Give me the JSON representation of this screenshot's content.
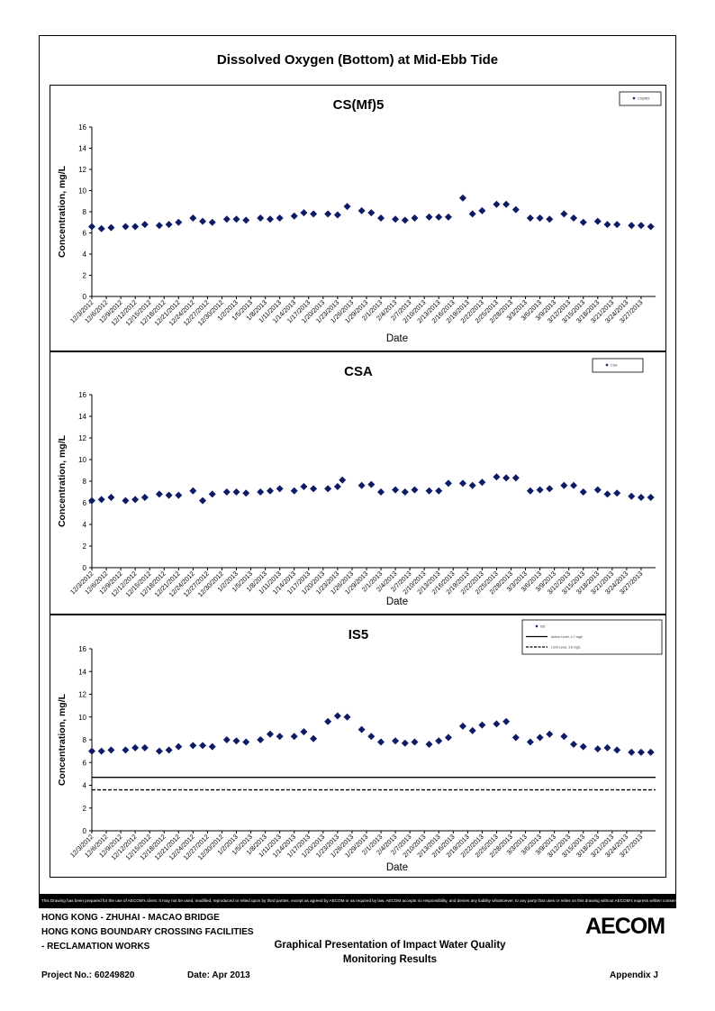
{
  "page": {
    "main_title": "Dissolved Oxygen (Bottom) at Mid-Ebb Tide",
    "disclaimer": "This Drawing has been prepared for the use of AECOM's client. It may not be used, modified, reproduced or relied upon by third parties, except as agreed by AECOM or as required by law. AECOM accepts no responsibility, and denies any liability whatsoever, to any party that uses or relies on this drawing without AECOM's express written consent.",
    "footer": {
      "line1": "HONG KONG - ZHUHAI - MACAO BRIDGE",
      "line2": "HONG KONG BOUNDARY CROSSING FACILITIES",
      "line3": "- RECLAMATION WORKS",
      "title_line1": "Graphical Presentation of Impact Water Quality",
      "title_line2": "Monitoring Results",
      "project": "Project No.: 60249820",
      "date": "Date: Apr 2013",
      "appendix": "Appendix J",
      "logo": "AECOM"
    }
  },
  "chart_data": [
    {
      "type": "scatter",
      "title": "CS(Mf)5",
      "xlabel": "Date",
      "ylabel": "Concentration, mg/L",
      "ylim": [
        0,
        16
      ],
      "yticks": [
        0,
        2,
        4,
        6,
        8,
        10,
        12,
        14,
        16
      ],
      "x_tick_labels": [
        "12/3/2012",
        "12/6/2012",
        "12/9/2012",
        "12/12/2012",
        "12/15/2012",
        "12/18/2012",
        "12/21/2012",
        "12/24/2012",
        "12/27/2012",
        "12/30/2012",
        "1/2/2013",
        "1/5/2013",
        "1/8/2013",
        "1/11/2013",
        "1/14/2013",
        "1/17/2013",
        "1/20/2013",
        "1/23/2013",
        "1/26/2013",
        "1/29/2013",
        "2/1/2013",
        "2/4/2013",
        "2/7/2013",
        "2/10/2013",
        "2/13/2013",
        "2/16/2013",
        "2/19/2013",
        "2/22/2013",
        "2/25/2013",
        "2/28/2013",
        "3/3/2013",
        "3/6/2013",
        "3/9/2013",
        "3/12/2013",
        "3/15/2013",
        "3/18/2013",
        "3/21/2013",
        "3/24/2013",
        "3/27/2013"
      ],
      "legend": [
        {
          "label": "CS(Mf)5",
          "style": "marker"
        }
      ],
      "legend_position": "top-right",
      "series": [
        {
          "name": "CS(Mf)5",
          "color": "#0d1a66",
          "points": [
            [
              "12/3/2012",
              6.6
            ],
            [
              "12/5/2012",
              6.4
            ],
            [
              "12/7/2012",
              6.5
            ],
            [
              "12/10/2012",
              6.6
            ],
            [
              "12/12/2012",
              6.6
            ],
            [
              "12/14/2012",
              6.8
            ],
            [
              "12/17/2012",
              6.7
            ],
            [
              "12/19/2012",
              6.8
            ],
            [
              "12/21/2012",
              7.0
            ],
            [
              "12/24/2012",
              7.4
            ],
            [
              "12/26/2012",
              7.1
            ],
            [
              "12/28/2012",
              7.0
            ],
            [
              "12/31/2012",
              7.3
            ],
            [
              "1/2/2013",
              7.3
            ],
            [
              "1/4/2013",
              7.2
            ],
            [
              "1/7/2013",
              7.4
            ],
            [
              "1/9/2013",
              7.3
            ],
            [
              "1/11/2013",
              7.4
            ],
            [
              "1/14/2013",
              7.6
            ],
            [
              "1/16/2013",
              7.9
            ],
            [
              "1/18/2013",
              7.8
            ],
            [
              "1/21/2013",
              7.8
            ],
            [
              "1/23/2013",
              7.7
            ],
            [
              "1/25/2013",
              8.5
            ],
            [
              "1/28/2013",
              8.1
            ],
            [
              "1/30/2013",
              7.9
            ],
            [
              "2/1/2013",
              7.4
            ],
            [
              "2/4/2013",
              7.3
            ],
            [
              "2/6/2013",
              7.2
            ],
            [
              "2/8/2013",
              7.4
            ],
            [
              "2/11/2013",
              7.5
            ],
            [
              "2/13/2013",
              7.5
            ],
            [
              "2/15/2013",
              7.5
            ],
            [
              "2/18/2013",
              9.3
            ],
            [
              "2/20/2013",
              7.8
            ],
            [
              "2/22/2013",
              8.1
            ],
            [
              "2/25/2013",
              8.7
            ],
            [
              "2/27/2013",
              8.7
            ],
            [
              "3/1/2013",
              8.2
            ],
            [
              "3/4/2013",
              7.4
            ],
            [
              "3/6/2013",
              7.4
            ],
            [
              "3/8/2013",
              7.3
            ],
            [
              "3/11/2013",
              7.8
            ],
            [
              "3/13/2013",
              7.4
            ],
            [
              "3/15/2013",
              7.0
            ],
            [
              "3/18/2013",
              7.1
            ],
            [
              "3/20/2013",
              6.8
            ],
            [
              "3/22/2013",
              6.8
            ],
            [
              "3/25/2013",
              6.7
            ],
            [
              "3/27/2013",
              6.7
            ],
            [
              "3/29/2013",
              6.6
            ]
          ]
        }
      ]
    },
    {
      "type": "scatter",
      "title": "CSA",
      "xlabel": "Date",
      "ylabel": "Concentration, mg/L",
      "ylim": [
        0,
        16
      ],
      "yticks": [
        0,
        2,
        4,
        6,
        8,
        10,
        12,
        14,
        16
      ],
      "x_tick_labels": [
        "12/3/2012",
        "12/6/2012",
        "12/9/2012",
        "12/12/2012",
        "12/15/2012",
        "12/18/2012",
        "12/21/2012",
        "12/24/2012",
        "12/27/2012",
        "12/30/2012",
        "1/2/2013",
        "1/5/2013",
        "1/8/2013",
        "1/11/2013",
        "1/14/2013",
        "1/17/2013",
        "1/20/2013",
        "1/23/2013",
        "1/26/2013",
        "1/29/2013",
        "2/1/2013",
        "2/4/2013",
        "2/7/2013",
        "2/10/2013",
        "2/13/2013",
        "2/16/2013",
        "2/19/2013",
        "2/22/2013",
        "2/25/2013",
        "2/28/2013",
        "3/3/2013",
        "3/6/2013",
        "3/9/2013",
        "3/12/2013",
        "3/15/2013",
        "3/18/2013",
        "3/21/2013",
        "3/24/2013",
        "3/27/2013"
      ],
      "legend": [
        {
          "label": "CSA",
          "style": "marker"
        }
      ],
      "legend_position": "top-right",
      "series": [
        {
          "name": "CSA",
          "color": "#0d1a66",
          "points": [
            [
              "12/3/2012",
              6.2
            ],
            [
              "12/5/2012",
              6.3
            ],
            [
              "12/7/2012",
              6.5
            ],
            [
              "12/10/2012",
              6.2
            ],
            [
              "12/12/2012",
              6.3
            ],
            [
              "12/14/2012",
              6.5
            ],
            [
              "12/17/2012",
              6.8
            ],
            [
              "12/19/2012",
              6.7
            ],
            [
              "12/21/2012",
              6.7
            ],
            [
              "12/24/2012",
              7.1
            ],
            [
              "12/26/2012",
              6.2
            ],
            [
              "12/28/2012",
              6.8
            ],
            [
              "12/31/2012",
              7.0
            ],
            [
              "1/2/2013",
              7.0
            ],
            [
              "1/4/2013",
              6.9
            ],
            [
              "1/7/2013",
              7.0
            ],
            [
              "1/9/2013",
              7.1
            ],
            [
              "1/11/2013",
              7.3
            ],
            [
              "1/14/2013",
              7.1
            ],
            [
              "1/16/2013",
              7.5
            ],
            [
              "1/18/2013",
              7.3
            ],
            [
              "1/21/2013",
              7.3
            ],
            [
              "1/23/2013",
              7.5
            ],
            [
              "1/24/2013",
              8.1
            ],
            [
              "1/28/2013",
              7.6
            ],
            [
              "1/30/2013",
              7.7
            ],
            [
              "2/1/2013",
              7.0
            ],
            [
              "2/4/2013",
              7.2
            ],
            [
              "2/6/2013",
              7.0
            ],
            [
              "2/8/2013",
              7.2
            ],
            [
              "2/11/2013",
              7.1
            ],
            [
              "2/13/2013",
              7.1
            ],
            [
              "2/15/2013",
              7.8
            ],
            [
              "2/18/2013",
              7.8
            ],
            [
              "2/20/2013",
              7.6
            ],
            [
              "2/22/2013",
              7.9
            ],
            [
              "2/25/2013",
              8.4
            ],
            [
              "2/27/2013",
              8.3
            ],
            [
              "3/1/2013",
              8.3
            ],
            [
              "3/4/2013",
              7.1
            ],
            [
              "3/6/2013",
              7.2
            ],
            [
              "3/8/2013",
              7.3
            ],
            [
              "3/11/2013",
              7.6
            ],
            [
              "3/13/2013",
              7.6
            ],
            [
              "3/15/2013",
              7.0
            ],
            [
              "3/18/2013",
              7.2
            ],
            [
              "3/20/2013",
              6.8
            ],
            [
              "3/22/2013",
              6.9
            ],
            [
              "3/25/2013",
              6.6
            ],
            [
              "3/27/2013",
              6.5
            ],
            [
              "3/29/2013",
              6.5
            ]
          ]
        }
      ]
    },
    {
      "type": "scatter",
      "title": "IS5",
      "xlabel": "Date",
      "ylabel": "Concentration, mg/L",
      "ylim": [
        0,
        16
      ],
      "yticks": [
        0,
        2,
        4,
        6,
        8,
        10,
        12,
        14,
        16
      ],
      "x_tick_labels": [
        "12/3/2012",
        "12/6/2012",
        "12/9/2012",
        "12/12/2012",
        "12/15/2012",
        "12/18/2012",
        "12/21/2012",
        "12/24/2012",
        "12/27/2012",
        "12/30/2012",
        "1/2/2013",
        "1/5/2013",
        "1/8/2013",
        "1/11/2013",
        "1/14/2013",
        "1/17/2013",
        "1/20/2013",
        "1/23/2013",
        "1/26/2013",
        "1/29/2013",
        "2/1/2013",
        "2/4/2013",
        "2/7/2013",
        "2/10/2013",
        "2/13/2013",
        "2/16/2013",
        "2/19/2013",
        "2/22/2013",
        "2/25/2013",
        "2/28/2013",
        "3/3/2013",
        "3/6/2013",
        "3/9/2013",
        "3/12/2013",
        "3/15/2013",
        "3/18/2013",
        "3/21/2013",
        "3/24/2013",
        "3/27/2013"
      ],
      "legend": [
        {
          "label": "IS5",
          "style": "marker"
        },
        {
          "label": "Action Level, 4.7 mg/L",
          "style": "solid"
        },
        {
          "label": "Limit Level, 3.6 mg/L",
          "style": "dashed"
        }
      ],
      "legend_position": "top-right",
      "hlines": [
        {
          "name": "Action Level",
          "value": 4.7,
          "style": "solid"
        },
        {
          "name": "Limit Level",
          "value": 3.6,
          "style": "dashed"
        }
      ],
      "series": [
        {
          "name": "IS5",
          "color": "#0d1a66",
          "points": [
            [
              "12/3/2012",
              7.0
            ],
            [
              "12/5/2012",
              7.0
            ],
            [
              "12/7/2012",
              7.1
            ],
            [
              "12/10/2012",
              7.1
            ],
            [
              "12/12/2012",
              7.3
            ],
            [
              "12/14/2012",
              7.3
            ],
            [
              "12/17/2012",
              7.0
            ],
            [
              "12/19/2012",
              7.1
            ],
            [
              "12/21/2012",
              7.4
            ],
            [
              "12/24/2012",
              7.5
            ],
            [
              "12/26/2012",
              7.5
            ],
            [
              "12/28/2012",
              7.4
            ],
            [
              "12/31/2012",
              8.0
            ],
            [
              "1/2/2013",
              7.9
            ],
            [
              "1/4/2013",
              7.8
            ],
            [
              "1/7/2013",
              8.0
            ],
            [
              "1/9/2013",
              8.5
            ],
            [
              "1/11/2013",
              8.3
            ],
            [
              "1/14/2013",
              8.3
            ],
            [
              "1/16/2013",
              8.7
            ],
            [
              "1/18/2013",
              8.1
            ],
            [
              "1/21/2013",
              9.6
            ],
            [
              "1/23/2013",
              10.1
            ],
            [
              "1/25/2013",
              10.0
            ],
            [
              "1/28/2013",
              8.9
            ],
            [
              "1/30/2013",
              8.3
            ],
            [
              "2/1/2013",
              7.8
            ],
            [
              "2/4/2013",
              7.9
            ],
            [
              "2/6/2013",
              7.7
            ],
            [
              "2/8/2013",
              7.8
            ],
            [
              "2/11/2013",
              7.6
            ],
            [
              "2/13/2013",
              7.9
            ],
            [
              "2/15/2013",
              8.2
            ],
            [
              "2/18/2013",
              9.2
            ],
            [
              "2/20/2013",
              8.8
            ],
            [
              "2/22/2013",
              9.3
            ],
            [
              "2/25/2013",
              9.4
            ],
            [
              "2/27/2013",
              9.6
            ],
            [
              "3/1/2013",
              8.2
            ],
            [
              "3/4/2013",
              7.8
            ],
            [
              "3/6/2013",
              8.2
            ],
            [
              "3/8/2013",
              8.5
            ],
            [
              "3/11/2013",
              8.3
            ],
            [
              "3/13/2013",
              7.6
            ],
            [
              "3/15/2013",
              7.4
            ],
            [
              "3/18/2013",
              7.2
            ],
            [
              "3/20/2013",
              7.3
            ],
            [
              "3/22/2013",
              7.1
            ],
            [
              "3/25/2013",
              6.9
            ],
            [
              "3/27/2013",
              6.9
            ],
            [
              "3/29/2013",
              6.9
            ]
          ]
        }
      ]
    }
  ]
}
